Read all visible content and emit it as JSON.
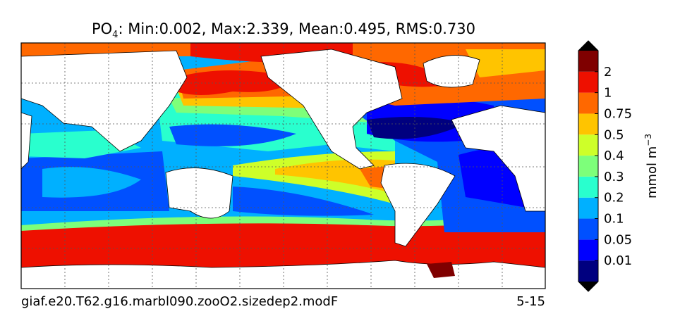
{
  "title": {
    "species": "PO",
    "subscript": "4",
    "stats": ": Min:0.002, Max:2.339, Mean:0.495, RMS:0.730"
  },
  "colorbar": {
    "levels": [
      0.01,
      0.05,
      0.1,
      0.2,
      0.3,
      0.4,
      0.5,
      0.75,
      1,
      2
    ],
    "colors": [
      "#00007f",
      "#0000ff",
      "#0050ff",
      "#00b0ff",
      "#29ffce",
      "#7dff7a",
      "#ceff29",
      "#ffc400",
      "#ff6800",
      "#ee1000",
      "#7f0000"
    ],
    "label": {
      "text": "mmol m",
      "superscript": "−3"
    }
  },
  "footer": {
    "case": "giaf.e20.T62.g16.marbl090.zooO2.sizedep2.modF",
    "years": "5-15"
  }
}
